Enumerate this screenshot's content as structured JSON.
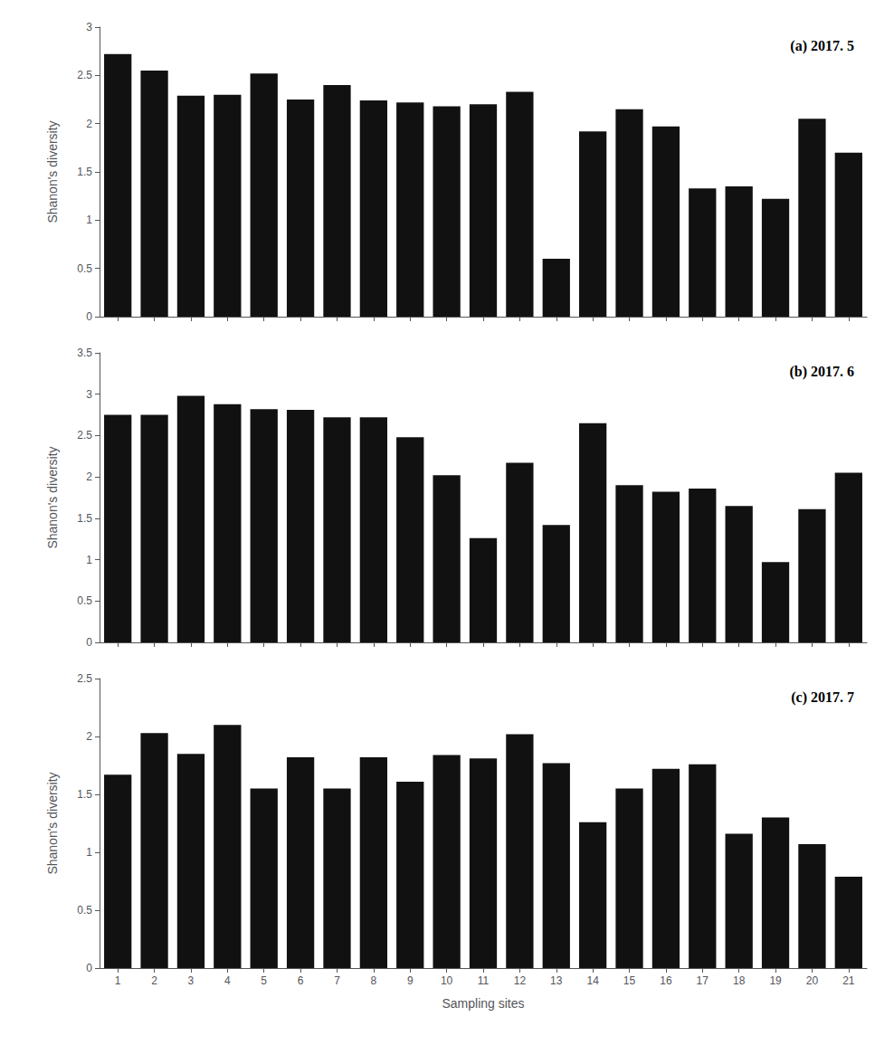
{
  "chart_data": [
    {
      "type": "bar",
      "annotation": "(a) 2017. 5",
      "categories": [
        "1",
        "2",
        "3",
        "4",
        "5",
        "6",
        "7",
        "8",
        "9",
        "10",
        "11",
        "12",
        "13",
        "14",
        "15",
        "16",
        "17",
        "18",
        "19",
        "20",
        "21"
      ],
      "values": [
        2.72,
        2.55,
        2.29,
        2.3,
        2.52,
        2.25,
        2.4,
        2.24,
        2.22,
        2.18,
        2.2,
        2.33,
        0.6,
        1.92,
        2.15,
        1.97,
        1.33,
        1.35,
        1.22,
        2.05,
        1.7
      ],
      "color": "#111111",
      "ylabel": "Shanon's diversity",
      "ylim": [
        0,
        3.0
      ],
      "yticks": [
        0,
        0.5,
        1,
        1.5,
        2,
        2.5,
        3
      ],
      "grid": false,
      "tick_labels": "y"
    },
    {
      "type": "bar",
      "annotation": "(b) 2017. 6",
      "categories": [
        "1",
        "2",
        "3",
        "4",
        "5",
        "6",
        "7",
        "8",
        "9",
        "10",
        "11",
        "12",
        "13",
        "14",
        "15",
        "16",
        "17",
        "18",
        "19",
        "20",
        "21"
      ],
      "values": [
        2.75,
        2.75,
        2.98,
        2.88,
        2.82,
        2.81,
        2.72,
        2.72,
        2.48,
        2.02,
        1.26,
        2.17,
        1.42,
        2.65,
        1.9,
        1.82,
        1.86,
        1.65,
        0.97,
        1.61,
        2.05
      ],
      "color": "#111111",
      "ylabel": "Shanon's diversity",
      "ylim": [
        0,
        3.5
      ],
      "yticks": [
        0,
        0.5,
        1,
        1.5,
        2,
        2.5,
        3,
        3.5
      ],
      "grid": false,
      "tick_labels": "y"
    },
    {
      "type": "bar",
      "annotation": "(c) 2017. 7",
      "categories": [
        "1",
        "2",
        "3",
        "4",
        "5",
        "6",
        "7",
        "8",
        "9",
        "10",
        "11",
        "12",
        "13",
        "14",
        "15",
        "16",
        "17",
        "18",
        "19",
        "20",
        "21"
      ],
      "values": [
        1.67,
        2.03,
        1.85,
        2.1,
        1.55,
        1.82,
        1.55,
        1.82,
        1.61,
        1.84,
        1.81,
        2.02,
        1.77,
        1.26,
        1.55,
        1.72,
        1.76,
        1.16,
        1.3,
        1.07,
        0.79
      ],
      "color": "#111111",
      "ylabel": "Shanon's diversity",
      "xlabel": "Sampling sites",
      "ylim": [
        0,
        2.5
      ],
      "yticks": [
        0,
        0.5,
        1,
        1.5,
        2,
        2.5
      ],
      "grid": false
    }
  ]
}
